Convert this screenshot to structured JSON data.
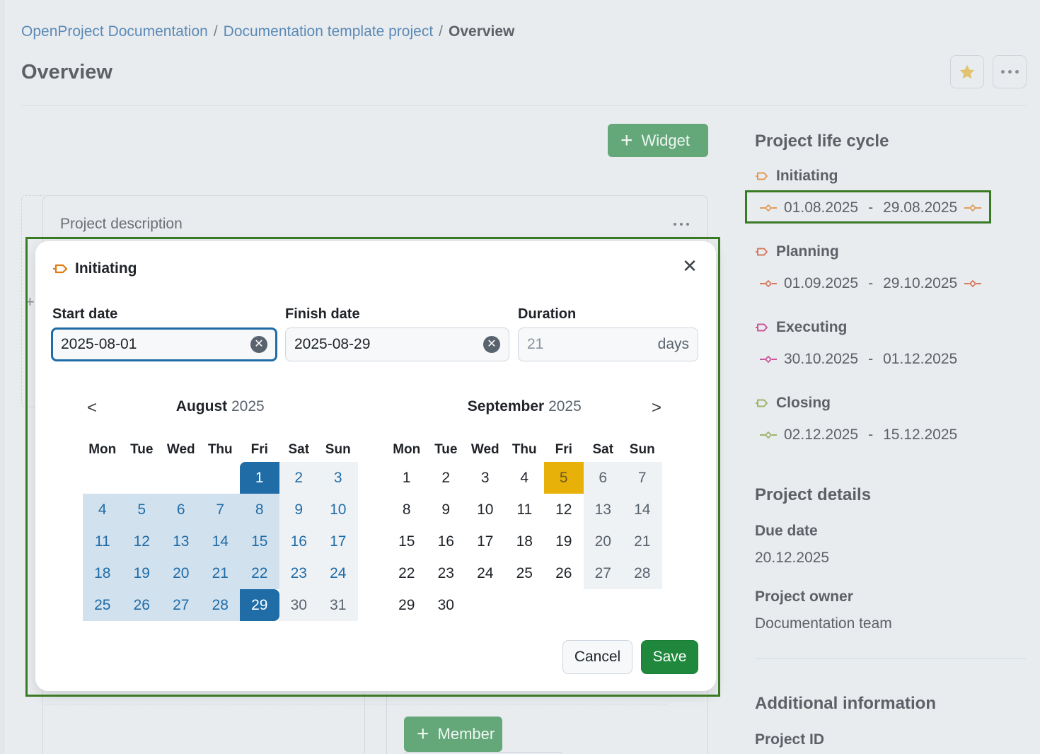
{
  "breadcrumb": {
    "items": [
      "OpenProject Documentation",
      "Documentation template project"
    ],
    "separator": "/",
    "current": "Overview"
  },
  "page": {
    "title": "Overview",
    "favorite_icon": "star-icon",
    "more_icon": "more-horizontal-icon"
  },
  "toolbar": {
    "widget_label": "Widget",
    "member_label": "Member"
  },
  "widget_card": {
    "title": "Project description"
  },
  "modal": {
    "phase_icon_color": "#e07b12",
    "title": "Initiating",
    "start_label": "Start date",
    "start_value": "2025-08-01",
    "finish_label": "Finish date",
    "finish_value": "2025-08-29",
    "duration_label": "Duration",
    "duration_value": "21",
    "duration_unit": "days",
    "cancel_label": "Cancel",
    "save_label": "Save",
    "calendars": [
      {
        "month": "August",
        "year": "2025",
        "weekdays": [
          "Mon",
          "Tue",
          "Wed",
          "Thu",
          "Fri",
          "Sat",
          "Sun"
        ],
        "leading_blanks": 4,
        "days": 31
      },
      {
        "month": "September",
        "year": "2025",
        "weekdays": [
          "Mon",
          "Tue",
          "Wed",
          "Thu",
          "Fri",
          "Sat",
          "Sun"
        ],
        "leading_blanks": 0,
        "days": 30,
        "today": 5
      }
    ],
    "selected_range": {
      "start": "2025-08-01",
      "end": "2025-08-29"
    }
  },
  "sidebar": {
    "lifecycle_title": "Project life cycle",
    "phases": [
      {
        "name": "Initiating",
        "start": "01.08.2025",
        "end": "29.08.2025",
        "color": "#e09b5c",
        "has_end_gate": true
      },
      {
        "name": "Planning",
        "start": "01.09.2025",
        "end": "29.10.2025",
        "color": "#d47a5e",
        "has_end_gate": true
      },
      {
        "name": "Executing",
        "start": "30.10.2025",
        "end": "01.12.2025",
        "color": "#c9569b",
        "has_end_gate": false
      },
      {
        "name": "Closing",
        "start": "02.12.2025",
        "end": "15.12.2025",
        "color": "#9db36a",
        "has_end_gate": false
      }
    ],
    "details_title": "Project details",
    "due_date_label": "Due date",
    "due_date_value": "20.12.2025",
    "owner_label": "Project owner",
    "owner_value": "Documentation team",
    "additional_title": "Additional information",
    "project_id_label": "Project ID"
  },
  "colors": {
    "primary_blue": "#1f6ca7",
    "range_blue": "#d2e1ee",
    "today_yellow": "#e7b10a",
    "save_green": "#1f883d",
    "highlight_green": "#3a7a25"
  }
}
